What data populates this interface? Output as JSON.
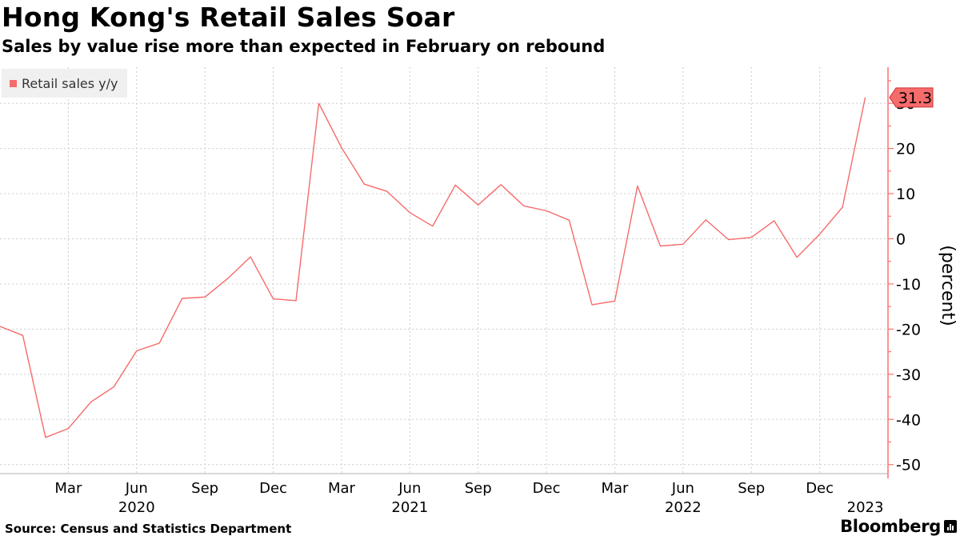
{
  "header": {
    "title": "Hong Kong's Retail Sales Soar",
    "subtitle": "Sales by value rise more than expected in February on rebound"
  },
  "footer": {
    "source": "Source: Census and Statistics Department",
    "brand": "Bloomberg"
  },
  "colors": {
    "series": "#f66b6b",
    "axis": "#ff6f6f",
    "grid": "#cccccc",
    "legend_bg": "#f0f0f0"
  },
  "chart_data": {
    "type": "line",
    "ylabel": "(percent)",
    "ylim": [
      -52,
      38
    ],
    "yticks": [
      -50,
      -40,
      -30,
      -20,
      -10,
      0,
      10,
      20,
      30
    ],
    "grid": true,
    "legend_position": "top-left",
    "x_axis": {
      "tick_labels": [
        "Mar",
        "Jun",
        "Sep",
        "Dec",
        "Mar",
        "Jun",
        "Sep",
        "Dec",
        "Mar",
        "Jun",
        "Sep",
        "Dec"
      ],
      "tick_dates": [
        "2020-03",
        "2020-06",
        "2020-09",
        "2020-12",
        "2021-03",
        "2021-06",
        "2021-09",
        "2021-12",
        "2022-03",
        "2022-06",
        "2022-09",
        "2022-12"
      ],
      "year_labels": [
        "2020",
        "2021",
        "2022",
        "2023"
      ],
      "year_dates": [
        "2020-06",
        "2021-06",
        "2022-06",
        "2023-02"
      ],
      "range": [
        "2019-12",
        "2023-03"
      ]
    },
    "series": [
      {
        "name": "Retail sales y/y",
        "x": [
          "2019-12",
          "2020-01",
          "2020-02",
          "2020-03",
          "2020-04",
          "2020-05",
          "2020-06",
          "2020-07",
          "2020-08",
          "2020-09",
          "2020-10",
          "2020-11",
          "2020-12",
          "2021-01",
          "2021-02",
          "2021-03",
          "2021-04",
          "2021-05",
          "2021-06",
          "2021-07",
          "2021-08",
          "2021-09",
          "2021-10",
          "2021-11",
          "2021-12",
          "2022-01",
          "2022-02",
          "2022-03",
          "2022-04",
          "2022-05",
          "2022-06",
          "2022-07",
          "2022-08",
          "2022-09",
          "2022-10",
          "2022-11",
          "2022-12",
          "2023-01",
          "2023-02"
        ],
        "values": [
          -19.4,
          -21.4,
          -44.0,
          -42.0,
          -36.1,
          -32.8,
          -24.8,
          -23.1,
          -13.2,
          -12.9,
          -8.8,
          -4.0,
          -13.3,
          -13.7,
          30.0,
          20.2,
          12.1,
          10.5,
          5.8,
          2.8,
          11.9,
          7.5,
          12.0,
          7.3,
          6.2,
          4.1,
          -14.6,
          -13.8,
          11.7,
          -1.6,
          -1.2,
          4.2,
          -0.2,
          0.3,
          4.0,
          -4.1,
          1.0,
          7.0,
          31.3
        ]
      }
    ],
    "last_value_label": "31.3"
  }
}
